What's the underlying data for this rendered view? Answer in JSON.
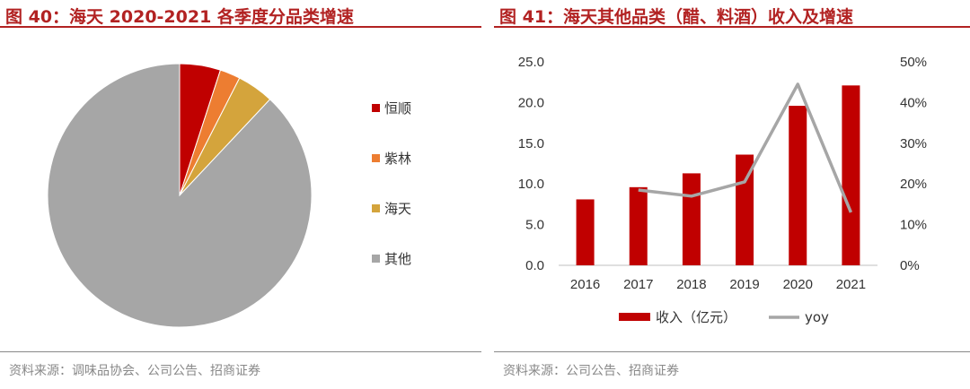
{
  "left": {
    "title": "图 40：海天 2020-2021 各季度分品类增速",
    "source": "资料来源：调味品协会、公司公告、招商证券"
  },
  "right": {
    "title": "图 41：海天其他品类（醋、料酒）收入及增速",
    "source": "资料来源：公司公告、招商证券"
  },
  "chart_data": [
    {
      "type": "pie",
      "title": "海天 2020-2021 各季度分品类增速",
      "slices": [
        {
          "label": "恒顺",
          "value": 5.0,
          "color": "#c00000"
        },
        {
          "label": "紫林",
          "value": 2.5,
          "color": "#ed7d31"
        },
        {
          "label": "海天",
          "value": 4.5,
          "color": "#d4a43c"
        },
        {
          "label": "其他",
          "value": 88.0,
          "color": "#a6a6a6"
        }
      ]
    },
    {
      "type": "bar",
      "title": "海天其他品类（醋、料酒）收入及增速",
      "categories": [
        "2016",
        "2017",
        "2018",
        "2019",
        "2020",
        "2021"
      ],
      "series": [
        {
          "name": "收入（亿元）",
          "type": "bar",
          "axis": "left",
          "color": "#c00000",
          "values": [
            8.1,
            9.6,
            11.3,
            13.6,
            19.6,
            22.1
          ]
        },
        {
          "name": "yoy",
          "type": "line",
          "axis": "right",
          "color": "#a6a6a6",
          "values": [
            null,
            18.5,
            17.0,
            20.5,
            44.5,
            13.0
          ]
        }
      ],
      "ylim_left": [
        0,
        25
      ],
      "yticks_left": [
        "0.0",
        "5.0",
        "10.0",
        "15.0",
        "20.0",
        "25.0"
      ],
      "ylim_right": [
        0,
        50
      ],
      "yticks_right": [
        "0%",
        "10%",
        "20%",
        "30%",
        "40%",
        "50%"
      ],
      "legend_position": "bottom"
    }
  ]
}
